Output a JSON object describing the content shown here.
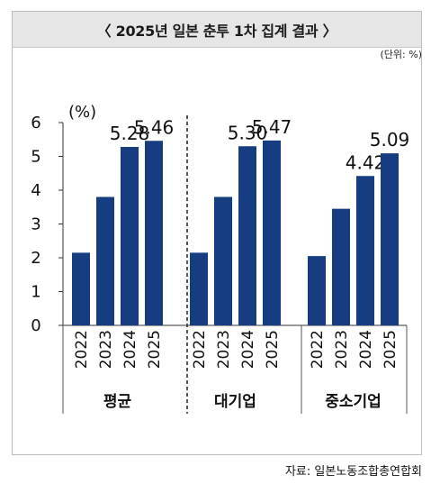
{
  "title": "〈 2025년 일본 춘투 1차 집계 결과 〉",
  "unit_note": "(단위: %)",
  "source": "자료: 일본노동조합총연합회",
  "chart_data": {
    "type": "bar",
    "y_unit_label": "(%)",
    "ylim": [
      0,
      6
    ],
    "yticks": [
      "0",
      "1",
      "2",
      "3",
      "4",
      "5",
      "6"
    ],
    "grid": false,
    "bar_color": "#163c82",
    "groups": [
      {
        "name": "평균",
        "categories": [
          "2022",
          "2023",
          "2024",
          "2025"
        ],
        "values": [
          2.15,
          3.8,
          5.28,
          5.46
        ],
        "labels": [
          "",
          "",
          "5.28",
          "5.46"
        ]
      },
      {
        "name": "대기업",
        "categories": [
          "2022",
          "2023",
          "2024",
          "2025"
        ],
        "values": [
          2.15,
          3.8,
          5.3,
          5.47
        ],
        "labels": [
          "",
          "",
          "5.30",
          "5.47"
        ]
      },
      {
        "name": "중소기업",
        "categories": [
          "2022",
          "2023",
          "2024",
          "2025"
        ],
        "values": [
          2.05,
          3.45,
          4.42,
          5.09
        ],
        "labels": [
          "",
          "",
          "4.42",
          "5.09"
        ]
      }
    ]
  }
}
